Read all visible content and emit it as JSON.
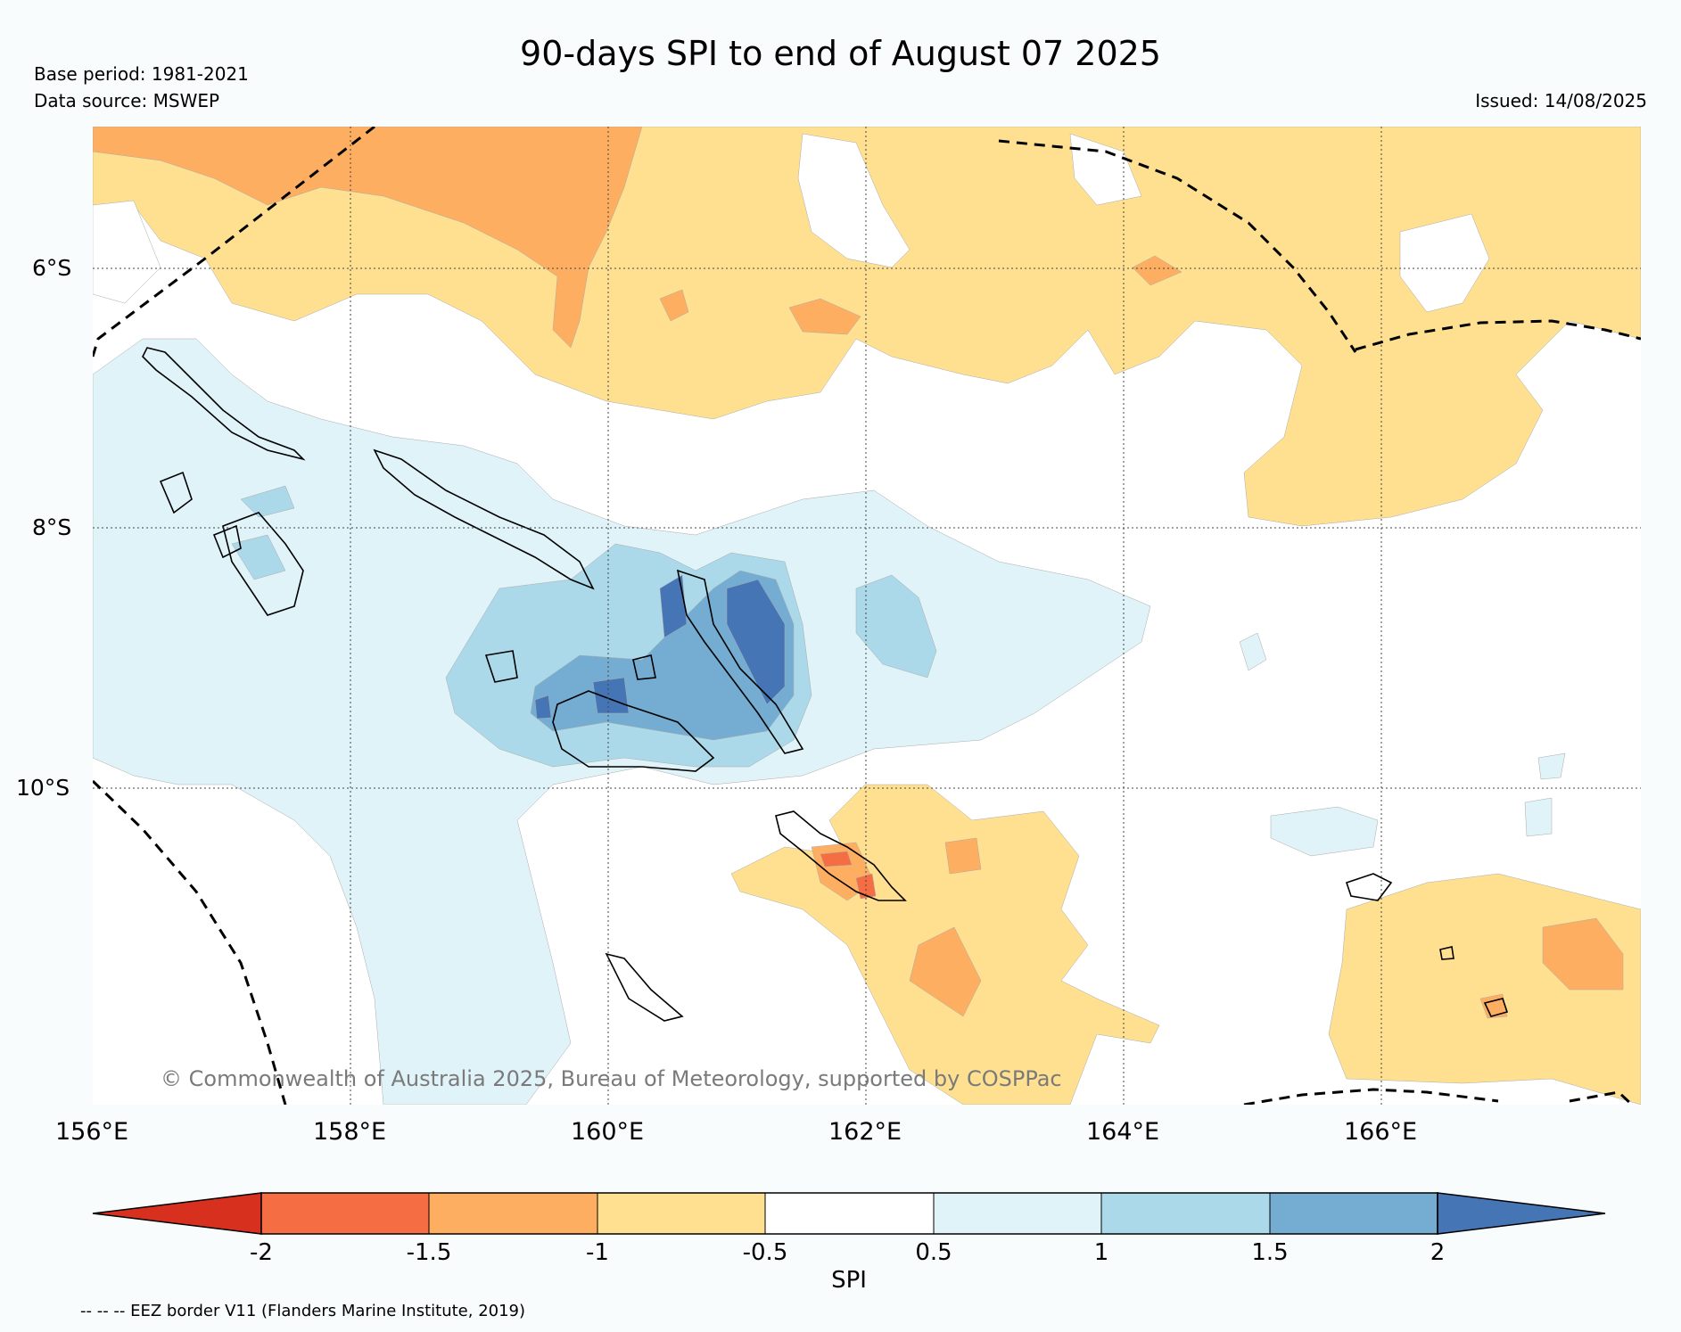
{
  "title": "90-days SPI to end of August 07 2025",
  "base_period": "Base period: 1981-2021",
  "data_source": "Data source: MSWEP",
  "issued": "Issued: 14/08/2025",
  "credit": "© Commonwealth of Australia 2025, Bureau of Meteorology, supported by COSPPac",
  "eez_note": "-- -- -- EEZ border V11 (Flanders Marine Institute, 2019)",
  "lat_labels": [
    "6°S",
    "8°S",
    "10°S"
  ],
  "lon_labels": [
    "156°E",
    "158°E",
    "160°E",
    "162°E",
    "164°E",
    "166°E"
  ],
  "colorbar": {
    "label": "SPI",
    "ticks": [
      "-2",
      "-1.5",
      "-1",
      "-0.5",
      "0.5",
      "1",
      "1.5",
      "2"
    ],
    "colors": [
      "#d7301f",
      "#f46d43",
      "#fdae61",
      "#fee090",
      "#ffffff",
      "#e0f3f8",
      "#abd9e9",
      "#74add1",
      "#4575b4"
    ]
  }
}
